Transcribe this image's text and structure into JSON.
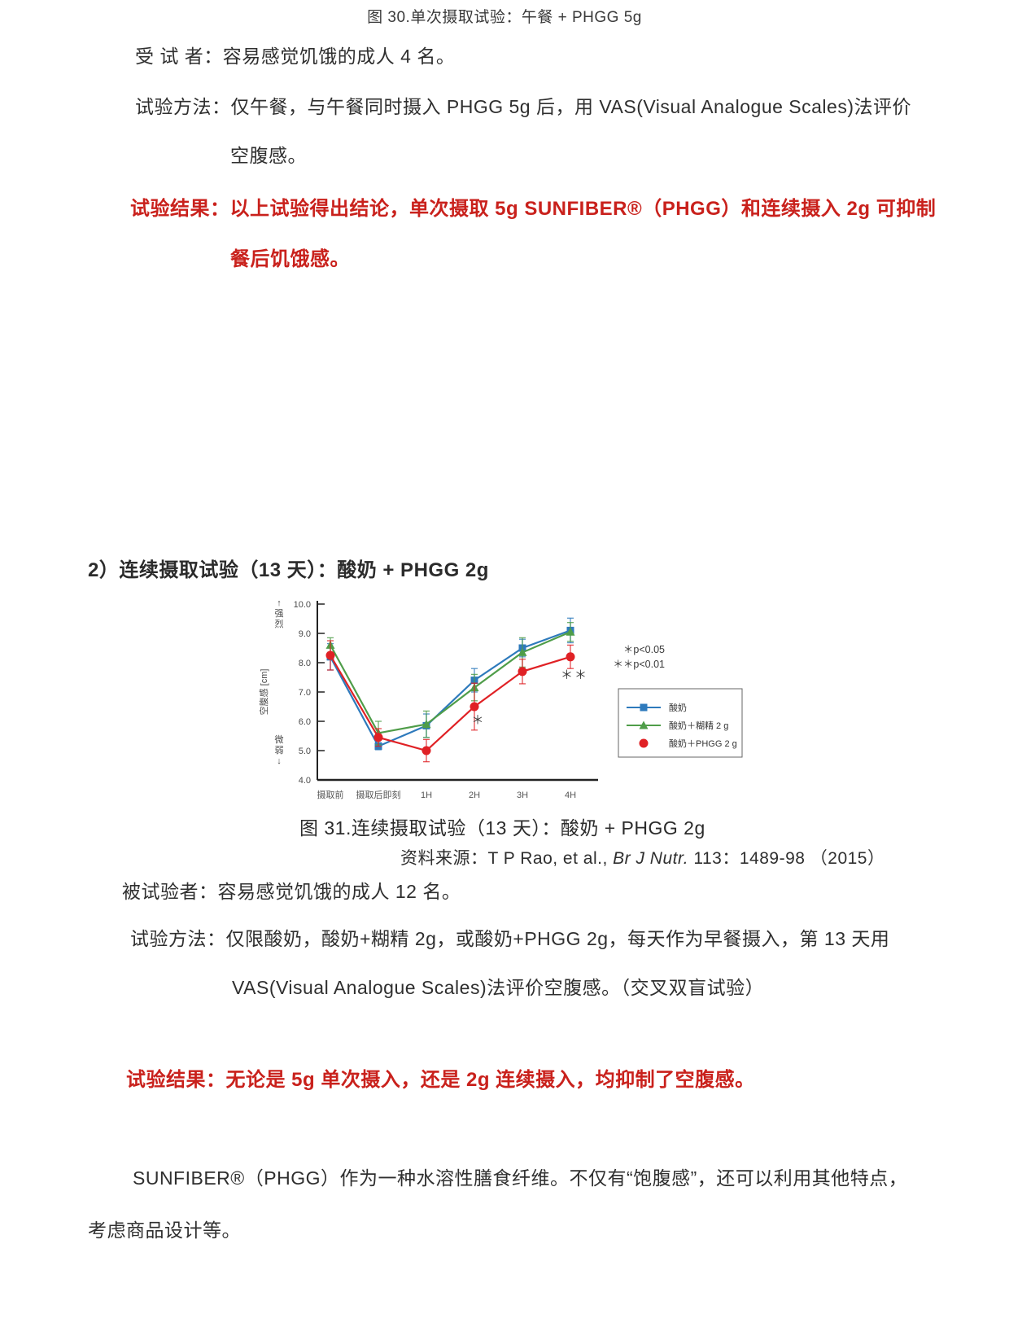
{
  "doc": {
    "fig30_caption": "图 30.单次摄取试验：午餐 + PHGG 5g",
    "study1_subjects": "受 试 者：容易感觉饥饿的成人 4 名。",
    "study1_method_line1": "试验方法：仅午餐，与午餐同时摄入 PHGG 5g 后，用 VAS(Visual Analogue Scales)法评价",
    "study1_method_line2": "空腹感。",
    "study1_result_line1": "试验结果：以上试验得出结论，单次摄取 5g SUNFIBER®（PHGG）和连续摄入 2g 可抑制",
    "study1_result_line2": "餐后饥饿感。",
    "section2_heading": "2）连续摄取试验（13 天）：酸奶 + PHGG 2g",
    "source_prefix": "资料来源：T P Rao, et al., ",
    "source_journal": "Br J Nutr.",
    "source_suffix": " 113：1489-98 （2015）",
    "study2_subjects": "被试验者：容易感觉饥饿的成人 12 名。",
    "study2_method_line1": "试验方法：仅限酸奶，酸奶+糊精 2g，或酸奶+PHGG 2g，每天作为早餐摄入，第 13 天用",
    "study2_method_line2": "VAS(Visual Analogue Scales)法评价空腹感。（交叉双盲试验）",
    "study2_result": "试验结果：无论是 5g 单次摄入，还是 2g 连续摄入，均抑制了空腹感。",
    "closing_line1": "SUNFIBER®（PHGG）作为一种水溶性膳食纤维。不仅有“饱腹感”，还可以利用其他特点，",
    "closing_line2": "考虑商品设计等。"
  },
  "colors": {
    "body_text": "#2f2f2f",
    "accent_red": "#c9211c",
    "series_yogurt_blue": "#2e7abc",
    "series_dextrin_green": "#4f9d49",
    "series_phgg_red": "#e02125"
  },
  "chart_data": {
    "type": "line",
    "title": "图 31.连续摄取试验（13 天）：酸奶 + PHGG 2g",
    "ylabel": "空腹感 [cm]",
    "axis_note_top": "↑强烈",
    "axis_note_bottom": "微弱↓",
    "ylim": [
      4.0,
      10.0
    ],
    "yticks": [
      "10.0",
      "9.0",
      "8.0",
      "7.0",
      "6.0",
      "5.0",
      "4.0"
    ],
    "categories": [
      "摄取前",
      "摄取后即刻",
      "1H",
      "2H",
      "3H",
      "4H"
    ],
    "grid": false,
    "legend_position": "right-bottom",
    "series": [
      {
        "name": "酸奶",
        "marker": "square",
        "color": "#2e7abc",
        "legend_line": true,
        "values": [
          8.2,
          5.15,
          5.85,
          7.4,
          8.5,
          9.1
        ],
        "errors": [
          0.45,
          0.12,
          0.4,
          0.4,
          0.3,
          0.42
        ]
      },
      {
        "name": "酸奶＋糊精 2 g",
        "marker": "triangle",
        "color": "#4f9d49",
        "legend_line": true,
        "values": [
          8.6,
          5.6,
          5.9,
          7.15,
          8.35,
          9.05
        ],
        "errors": [
          0.25,
          0.4,
          0.45,
          0.45,
          0.5,
          0.32
        ]
      },
      {
        "name": "酸奶＋PHGG 2 g",
        "marker": "circle",
        "color": "#e02125",
        "legend_line": false,
        "values": [
          8.25,
          5.45,
          5.0,
          6.5,
          7.7,
          8.2
        ],
        "errors": [
          0.5,
          0.3,
          0.38,
          0.8,
          0.42,
          0.4
        ]
      }
    ],
    "significance_marks": [
      {
        "text": "＊",
        "x_index": 3,
        "y": 5.9
      },
      {
        "text": "＊＊",
        "x_index": 5,
        "y": 7.45
      }
    ],
    "p_notes": [
      "＊p<0.05",
      "＊＊p<0.01"
    ]
  }
}
